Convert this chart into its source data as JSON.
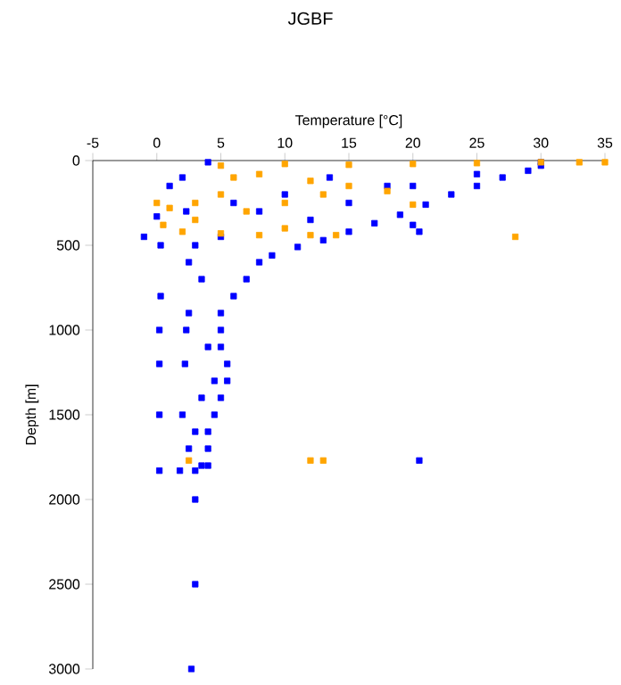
{
  "chart_data": {
    "type": "scatter",
    "title": "JGBF",
    "xlabel": "Temperature [°C]",
    "ylabel": "Depth [m]",
    "xlim": [
      -5,
      35
    ],
    "ylim": [
      3000,
      0
    ],
    "xticks": [
      -5,
      0,
      5,
      10,
      15,
      20,
      25,
      30,
      35
    ],
    "yticks": [
      0,
      500,
      1000,
      1500,
      2000,
      2500,
      3000
    ],
    "marker": "square",
    "grid": false,
    "series": [
      {
        "color": "#0000ff",
        "x": [
          30,
          30,
          29,
          27,
          25,
          23,
          21,
          19,
          17,
          15,
          13,
          11,
          9,
          8,
          7,
          6,
          5,
          5,
          5,
          5.5,
          5.5,
          5,
          4.5,
          4,
          4,
          3.5,
          3,
          4,
          2,
          1,
          0,
          -1,
          0.3,
          0.3,
          0.2,
          0.2,
          0.2,
          0.2,
          1.8,
          2,
          2.2,
          2.5,
          2.5,
          2.3,
          2.5,
          3.5,
          4,
          4.5,
          3,
          3.5,
          4,
          3,
          3,
          2.7,
          2.3,
          20,
          20.5,
          20.5,
          13.5,
          10,
          15,
          20,
          8,
          12,
          6,
          25,
          18,
          3,
          5
        ],
        "values": [
          10,
          30,
          60,
          100,
          150,
          200,
          260,
          320,
          370,
          420,
          470,
          510,
          560,
          600,
          700,
          800,
          900,
          1000,
          1100,
          1200,
          1300,
          1400,
          1500,
          1600,
          1700,
          1800,
          1830,
          10,
          100,
          150,
          330,
          450,
          500,
          800,
          1000,
          1200,
          1500,
          1830,
          1830,
          1500,
          1200,
          900,
          600,
          1000,
          1700,
          700,
          1100,
          1300,
          1600,
          1400,
          1800,
          2000,
          2500,
          3000,
          300,
          380,
          420,
          1770,
          100,
          200,
          250,
          150,
          300,
          350,
          250,
          80,
          150,
          500,
          450
        ]
      },
      {
        "color": "#ffa500",
        "x": [
          35,
          33,
          30,
          25,
          20,
          15,
          10,
          5,
          6,
          8,
          12,
          15,
          18,
          20,
          13,
          10,
          5,
          3,
          1,
          0,
          0.5,
          2,
          5,
          8,
          12,
          14,
          28,
          3,
          7,
          10,
          2.5,
          12,
          13
        ],
        "values": [
          10,
          10,
          10,
          15,
          20,
          25,
          20,
          30,
          100,
          80,
          120,
          150,
          180,
          260,
          200,
          250,
          200,
          250,
          280,
          250,
          380,
          420,
          430,
          440,
          440,
          440,
          450,
          350,
          300,
          400,
          1770,
          1770,
          1770
        ]
      }
    ]
  }
}
